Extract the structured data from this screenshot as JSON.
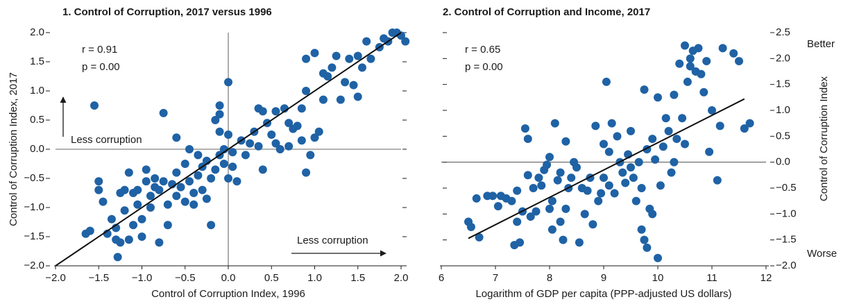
{
  "chart_data": [
    {
      "type": "scatter",
      "title": "1. Control of Corruption, 2017 versus 1996",
      "xlabel": "Control of Corruption Index, 1996",
      "ylabel": "Control of Corruption Index, 2017",
      "stats": [
        "r = 0.91",
        "p = 0.00"
      ],
      "annotations": [
        "Less corruption",
        "Less corruption"
      ],
      "color": "#1f62a5",
      "xlim": [
        -2,
        2
      ],
      "ylim": [
        -2,
        2
      ],
      "xticks": [
        {
          "value": -2,
          "label": "−2.0"
        },
        {
          "value": -1.5,
          "label": "−1.5"
        },
        {
          "value": -1,
          "label": "−1.0"
        },
        {
          "value": -0.5,
          "label": "−0.5"
        },
        {
          "value": 0,
          "label": "0.0"
        },
        {
          "value": 0.5,
          "label": "0.5"
        },
        {
          "value": 1,
          "label": "1.0"
        },
        {
          "value": 1.5,
          "label": "1.5"
        },
        {
          "value": 2,
          "label": "2.0"
        }
      ],
      "yticks": [
        {
          "value": -2,
          "label": "−2.0"
        },
        {
          "value": -1.5,
          "label": "−1.5"
        },
        {
          "value": -1,
          "label": "−1.0"
        },
        {
          "value": -0.5,
          "label": "−0.5"
        },
        {
          "value": 0,
          "label": "0.0"
        },
        {
          "value": 0.5,
          "label": "0.5"
        },
        {
          "value": 1,
          "label": "1.0"
        },
        {
          "value": 1.5,
          "label": "1.5"
        },
        {
          "value": 2,
          "label": "2.0"
        }
      ],
      "yaxis_side": "left",
      "hlines": [
        0
      ],
      "vlines": [
        0
      ],
      "fit": {
        "x": [
          -2,
          2
        ],
        "values": [
          -2,
          2
        ]
      },
      "x": [
        -1.55,
        -1.65,
        -1.6,
        -1.5,
        -1.5,
        -1.45,
        -1.4,
        -1.35,
        -1.3,
        -1.3,
        -1.28,
        -1.25,
        -1.25,
        -1.2,
        -1.2,
        -1.15,
        -1.15,
        -1.1,
        -1.1,
        -1.05,
        -1.05,
        -1.0,
        -1.0,
        -0.95,
        -0.95,
        -0.9,
        -0.9,
        -0.85,
        -0.85,
        -0.8,
        -0.8,
        -0.75,
        -0.75,
        -0.7,
        -0.7,
        -0.65,
        -0.6,
        -0.6,
        -0.6,
        -0.55,
        -0.5,
        -0.5,
        -0.45,
        -0.45,
        -0.4,
        -0.4,
        -0.35,
        -0.35,
        -0.3,
        -0.3,
        -0.25,
        -0.25,
        -0.2,
        -0.2,
        -0.15,
        -0.15,
        -0.1,
        -0.1,
        -0.05,
        -0.05,
        -0.1,
        -0.1,
        0.0,
        0.0,
        0.0,
        0.05,
        0.05,
        0.1,
        0.15,
        0.2,
        0.25,
        0.3,
        0.35,
        0.35,
        0.4,
        0.4,
        0.45,
        0.5,
        0.55,
        0.6,
        0.65,
        0.7,
        0.7,
        0.75,
        0.8,
        0.85,
        0.85,
        0.9,
        0.9,
        0.95,
        1.0,
        1.05,
        1.1,
        1.1,
        1.15,
        1.2,
        1.25,
        1.3,
        1.35,
        1.4,
        1.45,
        1.5,
        1.5,
        1.55,
        1.6,
        1.65,
        1.75,
        1.8,
        1.85,
        1.9,
        1.95,
        2.0,
        2.05,
        0.55,
        0.9,
        1.0
      ],
      "values": [
        0.75,
        -1.45,
        -1.4,
        -0.55,
        -0.7,
        -0.9,
        -1.45,
        -1.2,
        -1.35,
        -1.55,
        -1.85,
        -1.6,
        -0.75,
        -0.7,
        -1.05,
        -0.4,
        -1.55,
        -0.75,
        -1.3,
        -0.7,
        -0.95,
        -1.2,
        -1.5,
        -0.35,
        -0.55,
        -0.8,
        -1.0,
        -0.5,
        -0.65,
        -1.6,
        -0.7,
        0.62,
        -0.55,
        -0.95,
        -1.3,
        -0.6,
        -0.4,
        -0.8,
        0.2,
        -0.65,
        -0.9,
        -0.25,
        0.0,
        -0.55,
        -0.75,
        -0.95,
        -0.1,
        -0.45,
        -0.3,
        -0.7,
        -0.2,
        -0.85,
        -1.3,
        -0.5,
        0.5,
        -0.35,
        0.3,
        -0.1,
        0.0,
        -0.25,
        0.75,
        0.6,
        1.15,
        -0.5,
        0.25,
        -0.3,
        -0.05,
        -0.55,
        0.15,
        -0.1,
        0.1,
        0.3,
        0.05,
        0.7,
        0.65,
        -0.35,
        0.45,
        0.25,
        0.65,
        0.0,
        0.7,
        0.05,
        0.45,
        0.35,
        0.4,
        0.7,
        0.15,
        -0.4,
        1.0,
        -0.1,
        0.2,
        0.3,
        1.3,
        0.85,
        1.25,
        1.4,
        1.6,
        0.85,
        1.15,
        1.55,
        1.1,
        0.9,
        1.6,
        1.4,
        1.85,
        1.55,
        1.75,
        1.9,
        1.85,
        2.0,
        2.0,
        1.95,
        1.85,
        0.1,
        1.55,
        1.65
      ]
    },
    {
      "type": "scatter",
      "title": "2. Control of Corruption and Income, 2017",
      "xlabel": "Logarithm of GDP per capita (PPP-adjusted US dollars)",
      "ylabel": "Control of Corruption Index",
      "stats": [
        "r = 0.65",
        "p = 0.00"
      ],
      "annotations": [
        "Better",
        "Worse"
      ],
      "color": "#1f62a5",
      "xlim": [
        6,
        12
      ],
      "ylim": [
        -2,
        2.5
      ],
      "xticks": [
        6,
        7,
        8,
        9,
        10,
        11,
        12
      ],
      "yticks": [
        {
          "value": -2,
          "label": "−2.0"
        },
        {
          "value": -1.5,
          "label": "−1.5"
        },
        {
          "value": -1,
          "label": "−1.0"
        },
        {
          "value": -0.5,
          "label": "−0.5"
        },
        {
          "value": 0,
          "label": "0.0"
        },
        {
          "value": 0.5,
          "label": "0.5"
        },
        {
          "value": 1,
          "label": "1.0"
        },
        {
          "value": 1.5,
          "label": "1.5"
        },
        {
          "value": 2,
          "label": "2.0"
        },
        {
          "value": 2.5,
          "label": "2.5"
        }
      ],
      "yaxis_side": "right",
      "hlines": [
        0
      ],
      "vlines": [],
      "fit": {
        "x": [
          6.5,
          11.6
        ],
        "values": [
          -1.47,
          1.22
        ]
      },
      "x": [
        6.5,
        6.55,
        6.65,
        6.7,
        6.85,
        6.95,
        7.05,
        7.1,
        7.2,
        7.3,
        7.35,
        7.4,
        7.4,
        7.45,
        7.5,
        7.55,
        7.6,
        7.65,
        7.7,
        7.75,
        7.8,
        7.85,
        7.9,
        7.95,
        8.0,
        8.0,
        8.05,
        8.05,
        8.1,
        8.15,
        8.2,
        8.2,
        8.25,
        8.3,
        8.35,
        8.4,
        8.45,
        8.5,
        8.55,
        8.6,
        8.65,
        8.7,
        8.75,
        8.8,
        8.85,
        8.9,
        8.95,
        9.0,
        9.0,
        9.05,
        9.1,
        9.1,
        9.15,
        9.2,
        9.25,
        9.3,
        9.35,
        9.4,
        9.45,
        9.5,
        9.5,
        9.55,
        9.6,
        9.65,
        9.7,
        9.7,
        9.75,
        9.75,
        9.8,
        9.8,
        9.85,
        9.9,
        9.95,
        10.0,
        10.0,
        10.05,
        10.1,
        10.15,
        10.2,
        10.25,
        10.3,
        10.35,
        10.4,
        10.45,
        10.5,
        10.5,
        10.55,
        10.6,
        10.6,
        10.65,
        10.7,
        10.75,
        10.8,
        10.85,
        10.9,
        11.0,
        11.1,
        11.15,
        11.2,
        11.4,
        11.5,
        11.6,
        11.7,
        10.95,
        10.3,
        9.9,
        8.3,
        7.6
      ],
      "values": [
        -1.15,
        -1.25,
        -0.7,
        -1.45,
        -0.65,
        -0.65,
        -0.85,
        -0.65,
        -0.7,
        -0.75,
        -1.6,
        -1.15,
        -0.55,
        -1.55,
        -0.95,
        0.65,
        0.45,
        -1.05,
        -0.5,
        -0.95,
        -0.3,
        -0.45,
        -0.15,
        -0.05,
        0.1,
        -0.9,
        -1.3,
        -0.75,
        0.75,
        -0.35,
        -0.2,
        -1.15,
        -1.5,
        -0.9,
        -0.5,
        -0.3,
        0.0,
        -0.1,
        -1.55,
        -0.5,
        -1.0,
        -0.55,
        -0.3,
        -1.2,
        0.7,
        -0.75,
        -0.6,
        -0.3,
        0.35,
        1.55,
        0.2,
        -0.45,
        0.75,
        -0.6,
        0.5,
        0.0,
        -0.2,
        -0.4,
        0.15,
        0.6,
        -0.1,
        -0.3,
        -0.75,
        0.0,
        -0.5,
        -1.3,
        1.4,
        -1.5,
        -1.65,
        0.25,
        -0.9,
        0.45,
        0.05,
        1.25,
        -1.85,
        -0.45,
        0.3,
        0.85,
        0.6,
        -0.2,
        1.3,
        0.45,
        1.9,
        0.85,
        2.25,
        0.35,
        1.55,
        2.0,
        1.85,
        2.15,
        1.75,
        2.2,
        1.7,
        1.35,
        1.95,
        1.0,
        -0.35,
        0.7,
        2.2,
        2.1,
        1.95,
        0.65,
        0.75,
        0.2,
        0.0,
        -1.0,
        0.4,
        -0.25
      ]
    }
  ]
}
